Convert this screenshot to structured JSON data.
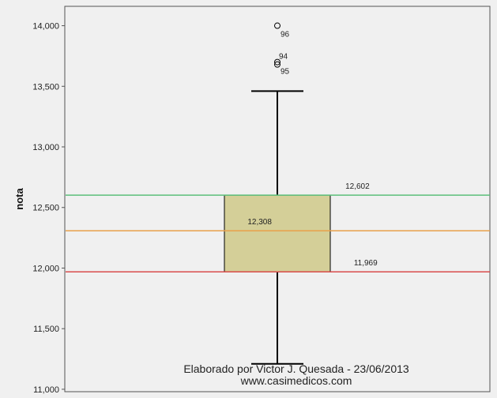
{
  "chart_data": {
    "type": "boxplot",
    "ylabel": "nota",
    "ylim": [
      10980,
      14160
    ],
    "yticks": [
      {
        "value": 11000,
        "label": "11,000"
      },
      {
        "value": 11500,
        "label": "11,500"
      },
      {
        "value": 12000,
        "label": "12,000"
      },
      {
        "value": 12500,
        "label": "12,500"
      },
      {
        "value": 13000,
        "label": "13,000"
      },
      {
        "value": 13500,
        "label": "13,500"
      },
      {
        "value": 14000,
        "label": "14,000"
      }
    ],
    "box": {
      "whisker_low": 11210,
      "q1": 11969,
      "median": 12308,
      "q3": 12602,
      "whisker_high": 13460,
      "fill": "#d4cf98"
    },
    "outliers": [
      {
        "value": 14000,
        "label": "96"
      },
      {
        "value": 13700,
        "label": "94"
      },
      {
        "value": 13680,
        "label": "95"
      }
    ],
    "reference_lines": [
      {
        "value": 12602,
        "label": "12,602",
        "color": "#5cbf7a",
        "label_x_frac": 0.66
      },
      {
        "value": 12308,
        "label": "12,308",
        "color": "#e8a04a",
        "label_x_frac": 0.43
      },
      {
        "value": 11969,
        "label": "11,969",
        "color": "#d94b4b",
        "label_x_frac": 0.68
      }
    ],
    "grid": false,
    "credit_lines": [
      "Elaborado por Victor J. Quesada - 23/06/2013",
      "www.casimedicos.com"
    ]
  }
}
